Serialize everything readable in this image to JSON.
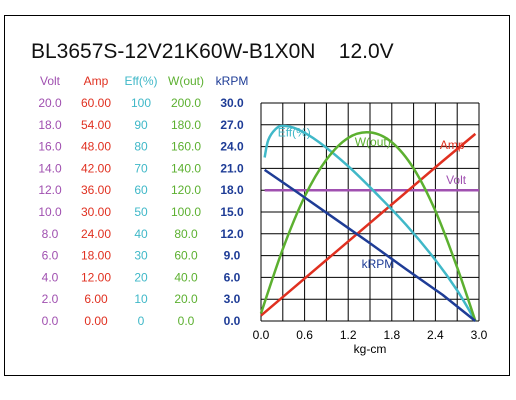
{
  "chart_data": {
    "type": "line",
    "title": "BL3657S-12V21K60W-B1X0N    12.0V",
    "xlabel": "kg-cm",
    "xlim": [
      0,
      3.0
    ],
    "x_ticks": [
      "0.0",
      "0.6",
      "1.2",
      "1.8",
      "2.4",
      "3.0"
    ],
    "grid": true,
    "axes": [
      {
        "name": "Volt",
        "color": "#a050b0",
        "ticks": [
          "20.0",
          "18.0",
          "16.0",
          "14.0",
          "12.0",
          "10.0",
          "8.0",
          "6.0",
          "4.0",
          "2.0",
          "0.0"
        ],
        "ylim": [
          0,
          20
        ]
      },
      {
        "name": "Amp",
        "color": "#e03020",
        "ticks": [
          "60.00",
          "54.00",
          "48.00",
          "42.00",
          "36.00",
          "30.00",
          "24.00",
          "18.00",
          "12.00",
          "6.00",
          "0.00"
        ],
        "ylim": [
          0,
          60
        ]
      },
      {
        "name": "Eff(%)",
        "color": "#40b8c8",
        "ticks": [
          "100",
          "90",
          "80",
          "70",
          "60",
          "50",
          "40",
          "30",
          "20",
          "10",
          "0"
        ],
        "ylim": [
          0,
          100
        ]
      },
      {
        "name": "W(out)",
        "color": "#5cb030",
        "ticks": [
          "200.0",
          "180.0",
          "160.0",
          "140.0",
          "120.0",
          "100.0",
          "80.0",
          "60.0",
          "40.0",
          "20.0",
          "0.0"
        ],
        "ylim": [
          0,
          200
        ]
      },
      {
        "name": "kRPM",
        "color": "#1e3c96",
        "ticks": [
          "30.0",
          "27.0",
          "24.0",
          "21.0",
          "18.0",
          "15.0",
          "12.0",
          "9.0",
          "6.0",
          "3.0",
          "0.0"
        ],
        "ylim": [
          0,
          30
        ]
      }
    ],
    "series": [
      {
        "name": "Volt",
        "axis": 0,
        "color": "#a050b0",
        "x": [
          0.05,
          0.5,
          1.0,
          1.5,
          2.0,
          2.5,
          3.0
        ],
        "y": [
          12.0,
          12.0,
          12.0,
          12.0,
          12.0,
          12.0,
          12.0
        ]
      },
      {
        "name": "Amp",
        "axis": 1,
        "color": "#e03020",
        "x": [
          0.0,
          0.5,
          1.0,
          1.5,
          2.0,
          2.5,
          2.95
        ],
        "y": [
          1.5,
          10.0,
          18.5,
          27.0,
          35.5,
          44.0,
          51.5
        ]
      },
      {
        "name": "Eff(%)",
        "axis": 2,
        "color": "#40b8c8",
        "x": [
          0.05,
          0.1,
          0.2,
          0.3,
          0.5,
          0.8,
          1.2,
          1.6,
          2.0,
          2.4,
          2.7,
          2.95
        ],
        "y": [
          75,
          83,
          88,
          89.5,
          88,
          82,
          71,
          58,
          44,
          28,
          14,
          0
        ]
      },
      {
        "name": "W(out)",
        "axis": 3,
        "color": "#5cb030",
        "x": [
          0.0,
          0.3,
          0.6,
          0.9,
          1.2,
          1.5,
          1.8,
          2.1,
          2.4,
          2.7,
          2.95
        ],
        "y": [
          7,
          66,
          114,
          148,
          168,
          173,
          164,
          140,
          101,
          49,
          0
        ]
      },
      {
        "name": "kRPM",
        "axis": 4,
        "color": "#1e3c96",
        "x": [
          0.05,
          0.5,
          1.0,
          1.5,
          2.0,
          2.5,
          2.95
        ],
        "y": [
          20.8,
          17.7,
          14.2,
          10.7,
          7.1,
          3.6,
          0.0
        ]
      }
    ]
  }
}
